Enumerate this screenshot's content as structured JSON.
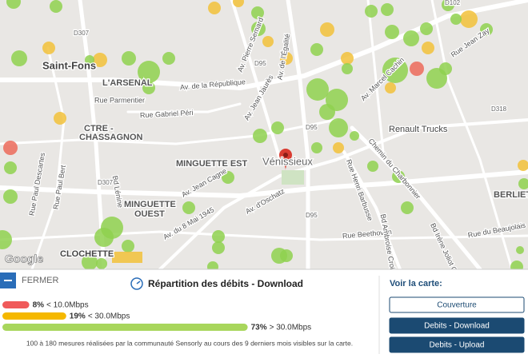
{
  "map": {
    "labels": [
      "Saint-Fons",
      "L'ARSENAL",
      "Rue Parmentier",
      "CTRE -",
      "CHASSAGNON",
      "MINGUETTE EST",
      "Vénissieux",
      "MINGUETTE",
      "OUEST",
      "CLOCHETTE",
      "BERLIET",
      "Renault Trucks",
      "Av. de la République",
      "Rue Gabriel Péri",
      "Av. Pierre Semard",
      "Av. Jean Jaurès",
      "Av. de l'Égalité",
      "Chemin du Charbonnier",
      "Bd Lénine",
      "Rue Paul Bert",
      "Av. du 8 Mai 1945",
      "Av. Jean Cagne",
      "Av. d'Oschatz",
      "Rue Beethoven",
      "Bd Ambroise Croizat",
      "Rue Paul Descartes",
      "Rue Jean Zay",
      "Av. Marcel Cachin",
      "Rue du Beaujolais",
      "Rue Henri Barbusse",
      "Bd Irène Joliot Curie",
      "D95",
      "D95",
      "D95",
      "D307",
      "D307",
      "D318",
      "D102"
    ],
    "logo": "Google"
  },
  "panel": {
    "close": "FERMER",
    "title": "Répartition des débits - Download",
    "legend": [
      {
        "percent": {
          "value": 8,
          "label": "8%"
        },
        "range": "< 10.0Mbps",
        "color": "#f05a5a"
      },
      {
        "percent": {
          "value": 19,
          "label": "19%"
        },
        "range": "< 30.0Mbps",
        "color": "#f5b800"
      },
      {
        "percent": {
          "value": 73,
          "label": "73%"
        },
        "range": "> 30.0Mbps",
        "color": "#a8d65c"
      }
    ],
    "footnote": "100 à 180 mesures réalisées par la communauté Sensorly au cours des 9 derniers mois visibles sur la carte.",
    "side_title": "Voir la carte:",
    "buttons": [
      "Couverture",
      "Debits - Download",
      "Debits - Upload"
    ]
  }
}
